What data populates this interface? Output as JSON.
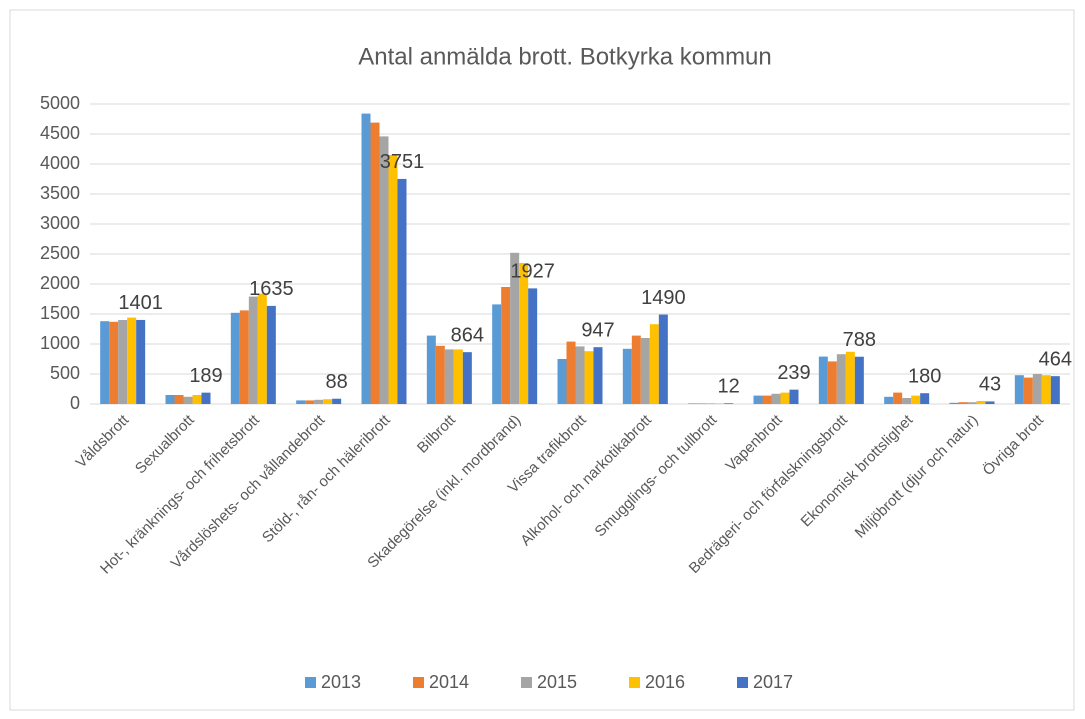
{
  "chart_data": {
    "type": "bar",
    "title": "Antal anmälda brott. Botkyrka kommun",
    "categories": [
      "Våldsbrott",
      "Sexualbrott",
      "Hot-, kränknings- och frihetsbrott",
      "Vårdslöshets- och vållandebrott",
      "Stöld-, rån- och häleribrott",
      "Bilbrott",
      "Skadegörelse (inkl. mordbrand)",
      "Vissa trafikbrott",
      "Alkohol- och narkotikabrott",
      "Smugglings- och tullbrott",
      "Vapenbrott",
      "Bedrägeri- och förfalskningsbrott",
      "Ekonomisk brottslighet",
      "Miljöbrott (djur och natur)",
      "Övriga brott"
    ],
    "series": [
      {
        "name": "2013",
        "color": "#5b9bd5",
        "values": [
          1380,
          150,
          1520,
          60,
          4840,
          1140,
          1660,
          750,
          920,
          10,
          140,
          790,
          120,
          20,
          480
        ]
      },
      {
        "name": "2014",
        "color": "#ed7d31",
        "values": [
          1370,
          150,
          1560,
          60,
          4690,
          970,
          1950,
          1040,
          1140,
          10,
          140,
          710,
          190,
          30,
          440
        ]
      },
      {
        "name": "2015",
        "color": "#a5a5a5",
        "values": [
          1400,
          120,
          1790,
          70,
          4460,
          910,
          2520,
          960,
          1100,
          10,
          170,
          830,
          100,
          30,
          500
        ]
      },
      {
        "name": "2016",
        "color": "#ffc000",
        "values": [
          1440,
          150,
          1840,
          80,
          4150,
          910,
          2350,
          880,
          1330,
          10,
          190,
          870,
          140,
          50,
          480
        ]
      },
      {
        "name": "2017",
        "color": "#4472c4",
        "data_labels": true,
        "values": [
          1401,
          189,
          1635,
          88,
          3751,
          864,
          1927,
          947,
          1490,
          12,
          239,
          788,
          180,
          43,
          464
        ]
      }
    ],
    "ylim": [
      0,
      5000
    ],
    "yticks": [
      0,
      500,
      1000,
      1500,
      2000,
      2500,
      3000,
      3500,
      4000,
      4500,
      5000
    ],
    "grid": true,
    "legend": "bottom"
  }
}
